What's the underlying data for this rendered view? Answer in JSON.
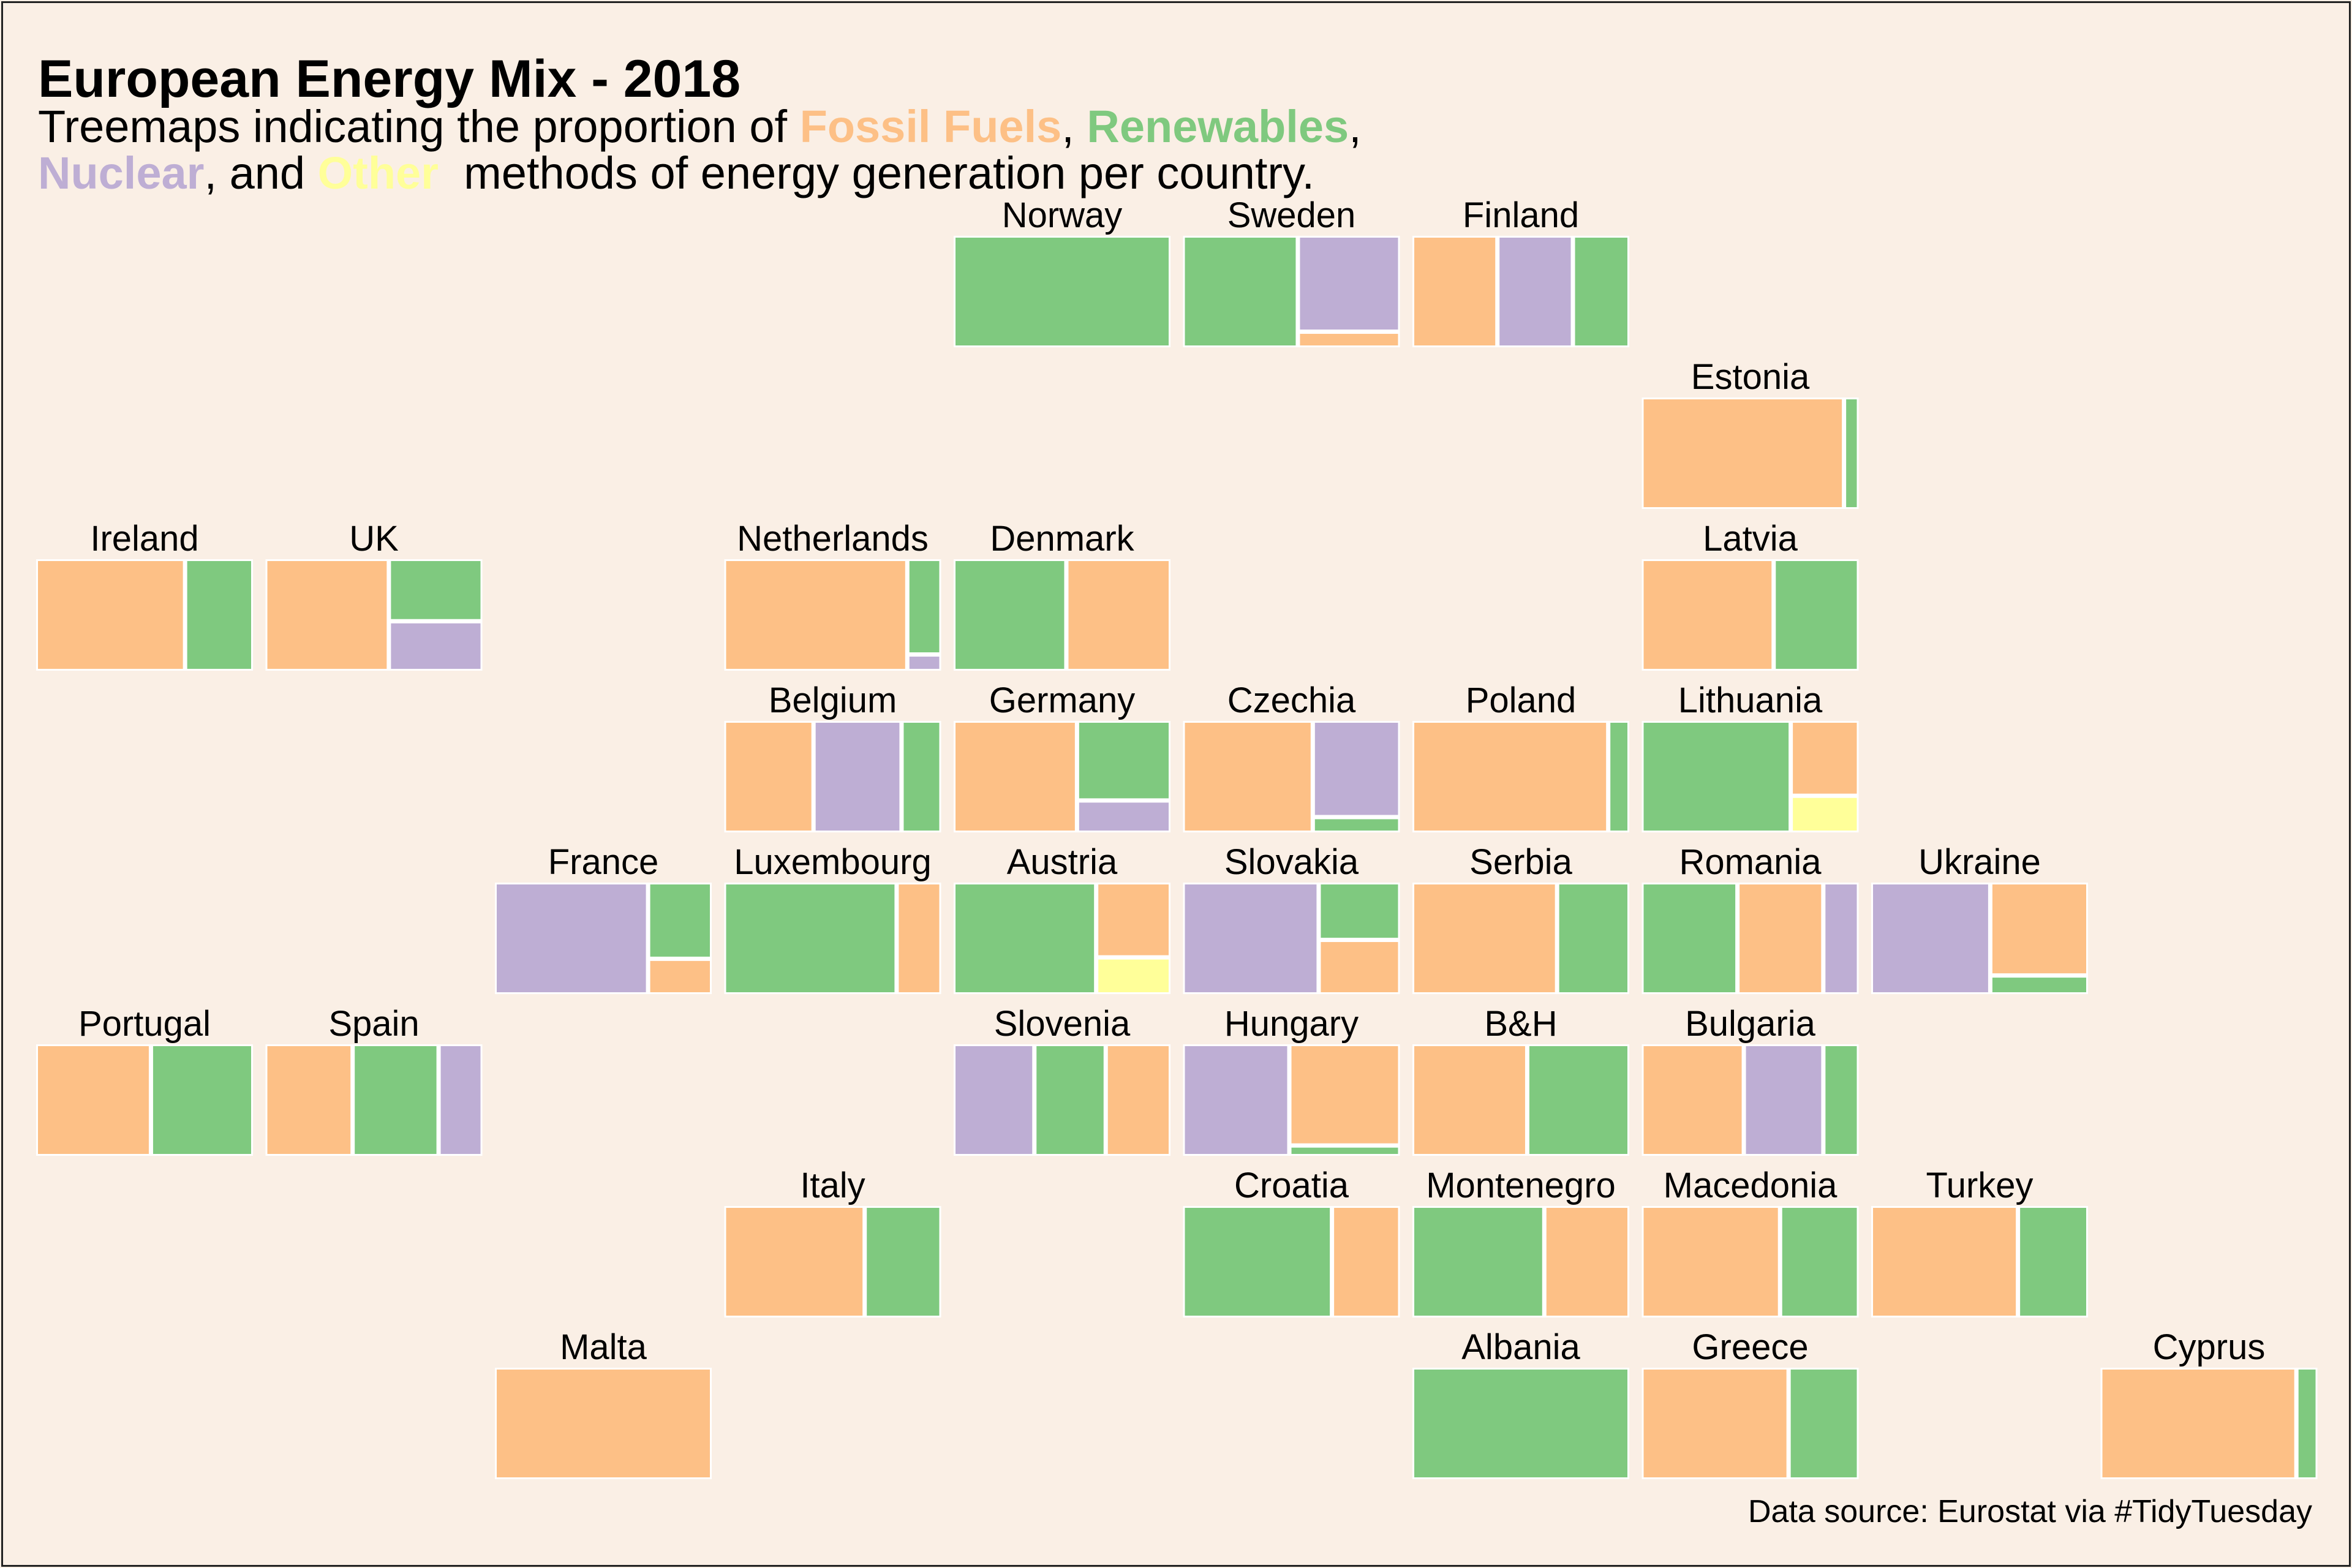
{
  "title": "European Energy Mix - 2018",
  "subtitle": {
    "prefix": "Treemaps indicating the proportion of ",
    "fossil": "Fossil Fuels",
    "sep1": ", ",
    "renewables": "Renewables",
    "sep2": ",",
    "nuclear": "Nuclear",
    "sep3": ", and ",
    "other": "Other",
    "suffix": "  methods of energy generation per country."
  },
  "caption": "Data source: Eurostat via #TidyTuesday",
  "colors": {
    "fossil": "#fdc086",
    "renewables": "#7fc97f",
    "nuclear": "#beaed4",
    "other": "#ffff99",
    "background": "#faefe5"
  },
  "chart_data": {
    "type": "treemap",
    "units": "proportion of total energy generation",
    "categories": [
      "Fossil Fuels",
      "Renewables",
      "Nuclear",
      "Other"
    ],
    "countries": [
      {
        "name": "Norway",
        "col": 4,
        "row": 0,
        "fossil": 0.0,
        "renewables": 1.0,
        "nuclear": 0.0,
        "other": 0.0
      },
      {
        "name": "Sweden",
        "col": 5,
        "row": 0,
        "fossil": 0.06,
        "renewables": 0.53,
        "nuclear": 0.41,
        "other": 0.0
      },
      {
        "name": "Finland",
        "col": 6,
        "row": 0,
        "fossil": 0.39,
        "renewables": 0.26,
        "nuclear": 0.35,
        "other": 0.0
      },
      {
        "name": "Estonia",
        "col": 7,
        "row": 1,
        "fossil": 0.94,
        "renewables": 0.06,
        "nuclear": 0.0,
        "other": 0.0
      },
      {
        "name": "Ireland",
        "col": 0,
        "row": 2,
        "fossil": 0.69,
        "renewables": 0.31,
        "nuclear": 0.0,
        "other": 0.0
      },
      {
        "name": "UK",
        "col": 1,
        "row": 2,
        "fossil": 0.57,
        "renewables": 0.24,
        "nuclear": 0.19,
        "other": 0.0
      },
      {
        "name": "Netherlands",
        "col": 3,
        "row": 2,
        "fossil": 0.85,
        "renewables": 0.13,
        "nuclear": 0.02,
        "other": 0.0
      },
      {
        "name": "Denmark",
        "col": 4,
        "row": 2,
        "fossil": 0.48,
        "renewables": 0.52,
        "nuclear": 0.0,
        "other": 0.0
      },
      {
        "name": "Latvia",
        "col": 7,
        "row": 2,
        "fossil": 0.61,
        "renewables": 0.39,
        "nuclear": 0.0,
        "other": 0.0
      },
      {
        "name": "Belgium",
        "col": 3,
        "row": 3,
        "fossil": 0.41,
        "renewables": 0.18,
        "nuclear": 0.41,
        "other": 0.0
      },
      {
        "name": "Germany",
        "col": 4,
        "row": 3,
        "fossil": 0.57,
        "renewables": 0.31,
        "nuclear": 0.12,
        "other": 0.0
      },
      {
        "name": "Czechia",
        "col": 5,
        "row": 3,
        "fossil": 0.6,
        "renewables": 0.05,
        "nuclear": 0.35,
        "other": 0.0
      },
      {
        "name": "Poland",
        "col": 6,
        "row": 3,
        "fossil": 0.91,
        "renewables": 0.09,
        "nuclear": 0.0,
        "other": 0.0
      },
      {
        "name": "Lithuania",
        "col": 7,
        "row": 3,
        "fossil": 0.21,
        "renewables": 0.69,
        "nuclear": 0.0,
        "other": 0.1
      },
      {
        "name": "France",
        "col": 2,
        "row": 4,
        "fossil": 0.09,
        "renewables": 0.2,
        "nuclear": 0.71,
        "other": 0.0
      },
      {
        "name": "Luxembourg",
        "col": 3,
        "row": 4,
        "fossil": 0.2,
        "renewables": 0.8,
        "nuclear": 0.0,
        "other": 0.0
      },
      {
        "name": "Austria",
        "col": 4,
        "row": 4,
        "fossil": 0.23,
        "renewables": 0.66,
        "nuclear": 0.0,
        "other": 0.11
      },
      {
        "name": "Slovakia",
        "col": 5,
        "row": 4,
        "fossil": 0.17,
        "renewables": 0.18,
        "nuclear": 0.59,
        "other": 0.0
      },
      {
        "name": "Serbia",
        "col": 6,
        "row": 4,
        "fossil": 0.67,
        "renewables": 0.33,
        "nuclear": 0.0,
        "other": 0.0
      },
      {
        "name": "Romania",
        "col": 7,
        "row": 4,
        "fossil": 0.4,
        "renewables": 0.44,
        "nuclear": 0.16,
        "other": 0.0
      },
      {
        "name": "Ukraine",
        "col": 8,
        "row": 4,
        "fossil": 0.38,
        "renewables": 0.07,
        "nuclear": 0.55,
        "other": 0.0
      },
      {
        "name": "Portugal",
        "col": 0,
        "row": 5,
        "fossil": 0.53,
        "renewables": 0.47,
        "nuclear": 0.0,
        "other": 0.0
      },
      {
        "name": "Spain",
        "col": 1,
        "row": 5,
        "fossil": 0.4,
        "renewables": 0.4,
        "nuclear": 0.2,
        "other": 0.0
      },
      {
        "name": "Slovenia",
        "col": 4,
        "row": 5,
        "fossil": 0.3,
        "renewables": 0.33,
        "nuclear": 0.37,
        "other": 0.0
      },
      {
        "name": "Hungary",
        "col": 5,
        "row": 5,
        "fossil": 0.47,
        "renewables": 0.04,
        "nuclear": 0.49,
        "other": 0.0
      },
      {
        "name": "B&H",
        "col": 6,
        "row": 5,
        "fossil": 0.53,
        "renewables": 0.47,
        "nuclear": 0.0,
        "other": 0.0
      },
      {
        "name": "Bulgaria",
        "col": 7,
        "row": 5,
        "fossil": 0.47,
        "renewables": 0.16,
        "nuclear": 0.37,
        "other": 0.0
      },
      {
        "name": "Italy",
        "col": 3,
        "row": 6,
        "fossil": 0.65,
        "renewables": 0.35,
        "nuclear": 0.0,
        "other": 0.0
      },
      {
        "name": "Croatia",
        "col": 5,
        "row": 6,
        "fossil": 0.31,
        "renewables": 0.69,
        "nuclear": 0.0,
        "other": 0.0
      },
      {
        "name": "Montenegro",
        "col": 6,
        "row": 6,
        "fossil": 0.39,
        "renewables": 0.61,
        "nuclear": 0.0,
        "other": 0.0
      },
      {
        "name": "Macedonia",
        "col": 7,
        "row": 6,
        "fossil": 0.64,
        "renewables": 0.36,
        "nuclear": 0.0,
        "other": 0.0
      },
      {
        "name": "Turkey",
        "col": 8,
        "row": 6,
        "fossil": 0.68,
        "renewables": 0.32,
        "nuclear": 0.0,
        "other": 0.0
      },
      {
        "name": "Malta",
        "col": 2,
        "row": 7,
        "fossil": 1.0,
        "renewables": 0.0,
        "nuclear": 0.0,
        "other": 0.0
      },
      {
        "name": "Albania",
        "col": 6,
        "row": 7,
        "fossil": 0.0,
        "renewables": 1.0,
        "nuclear": 0.0,
        "other": 0.0
      },
      {
        "name": "Greece",
        "col": 7,
        "row": 7,
        "fossil": 0.68,
        "renewables": 0.32,
        "nuclear": 0.0,
        "other": 0.0
      },
      {
        "name": "Cyprus",
        "col": 9,
        "row": 7,
        "fossil": 0.91,
        "renewables": 0.09,
        "nuclear": 0.0,
        "other": 0.0
      }
    ]
  }
}
